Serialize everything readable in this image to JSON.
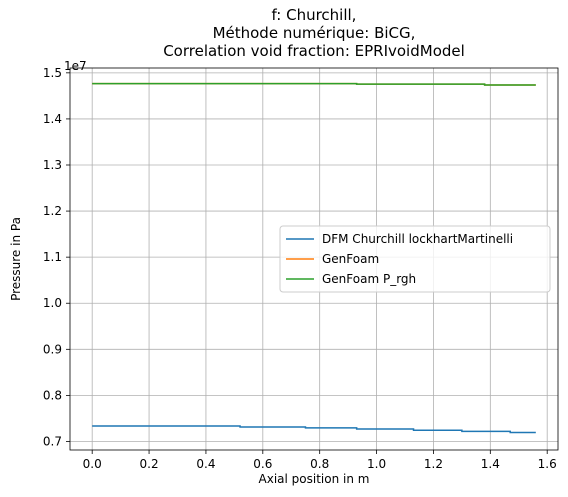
{
  "chart_data": {
    "type": "line",
    "title_lines": [
      "f: Churchill,",
      "Méthode numérique: BiCG,",
      "Correlation void fraction: EPRIvoidModel"
    ],
    "xlabel": "Axial position in m",
    "ylabel": "Pressure in Pa",
    "y_offset_label": "1e7",
    "xlim": [
      -0.078,
      1.638
    ],
    "ylim": [
      0.6815,
      1.5105
    ],
    "xticks": [
      0.0,
      0.2,
      0.4,
      0.6,
      0.8,
      1.0,
      1.2,
      1.4,
      1.6
    ],
    "xtick_labels": [
      "0.0",
      "0.2",
      "0.4",
      "0.6",
      "0.8",
      "1.0",
      "1.2",
      "1.4",
      "1.6"
    ],
    "yticks": [
      0.7,
      0.8,
      0.9,
      1.0,
      1.1,
      1.2,
      1.3,
      1.4,
      1.5
    ],
    "ytick_labels": [
      "0.7",
      "0.8",
      "0.9",
      "1.0",
      "1.1",
      "1.2",
      "1.3",
      "1.4",
      "1.5"
    ],
    "grid": true,
    "legend_position": "center-right",
    "series": [
      {
        "name": "DFM Churchill lockhartMartinelli",
        "color": "#1f77b4",
        "x": [
          0.0,
          0.52,
          0.52,
          0.75,
          0.75,
          0.93,
          0.93,
          1.13,
          1.13,
          1.3,
          1.3,
          1.47,
          1.47,
          1.56
        ],
        "y": [
          0.7335,
          0.7335,
          0.7315,
          0.7315,
          0.7295,
          0.7295,
          0.727,
          0.727,
          0.7245,
          0.7245,
          0.722,
          0.722,
          0.7195,
          0.7195
        ]
      },
      {
        "name": "GenFoam",
        "color": "#ff7f0e",
        "x": [
          0.0,
          0.93,
          0.93,
          1.38,
          1.38,
          1.56
        ],
        "y": [
          1.4765,
          1.4765,
          1.4755,
          1.4755,
          1.4735,
          1.4735
        ]
      },
      {
        "name": "GenFoam P_rgh",
        "color": "#2ca02c",
        "x": [
          0.0,
          0.93,
          0.93,
          1.38,
          1.38,
          1.56
        ],
        "y": [
          1.4765,
          1.4765,
          1.4755,
          1.4755,
          1.4735,
          1.4735
        ]
      }
    ]
  }
}
